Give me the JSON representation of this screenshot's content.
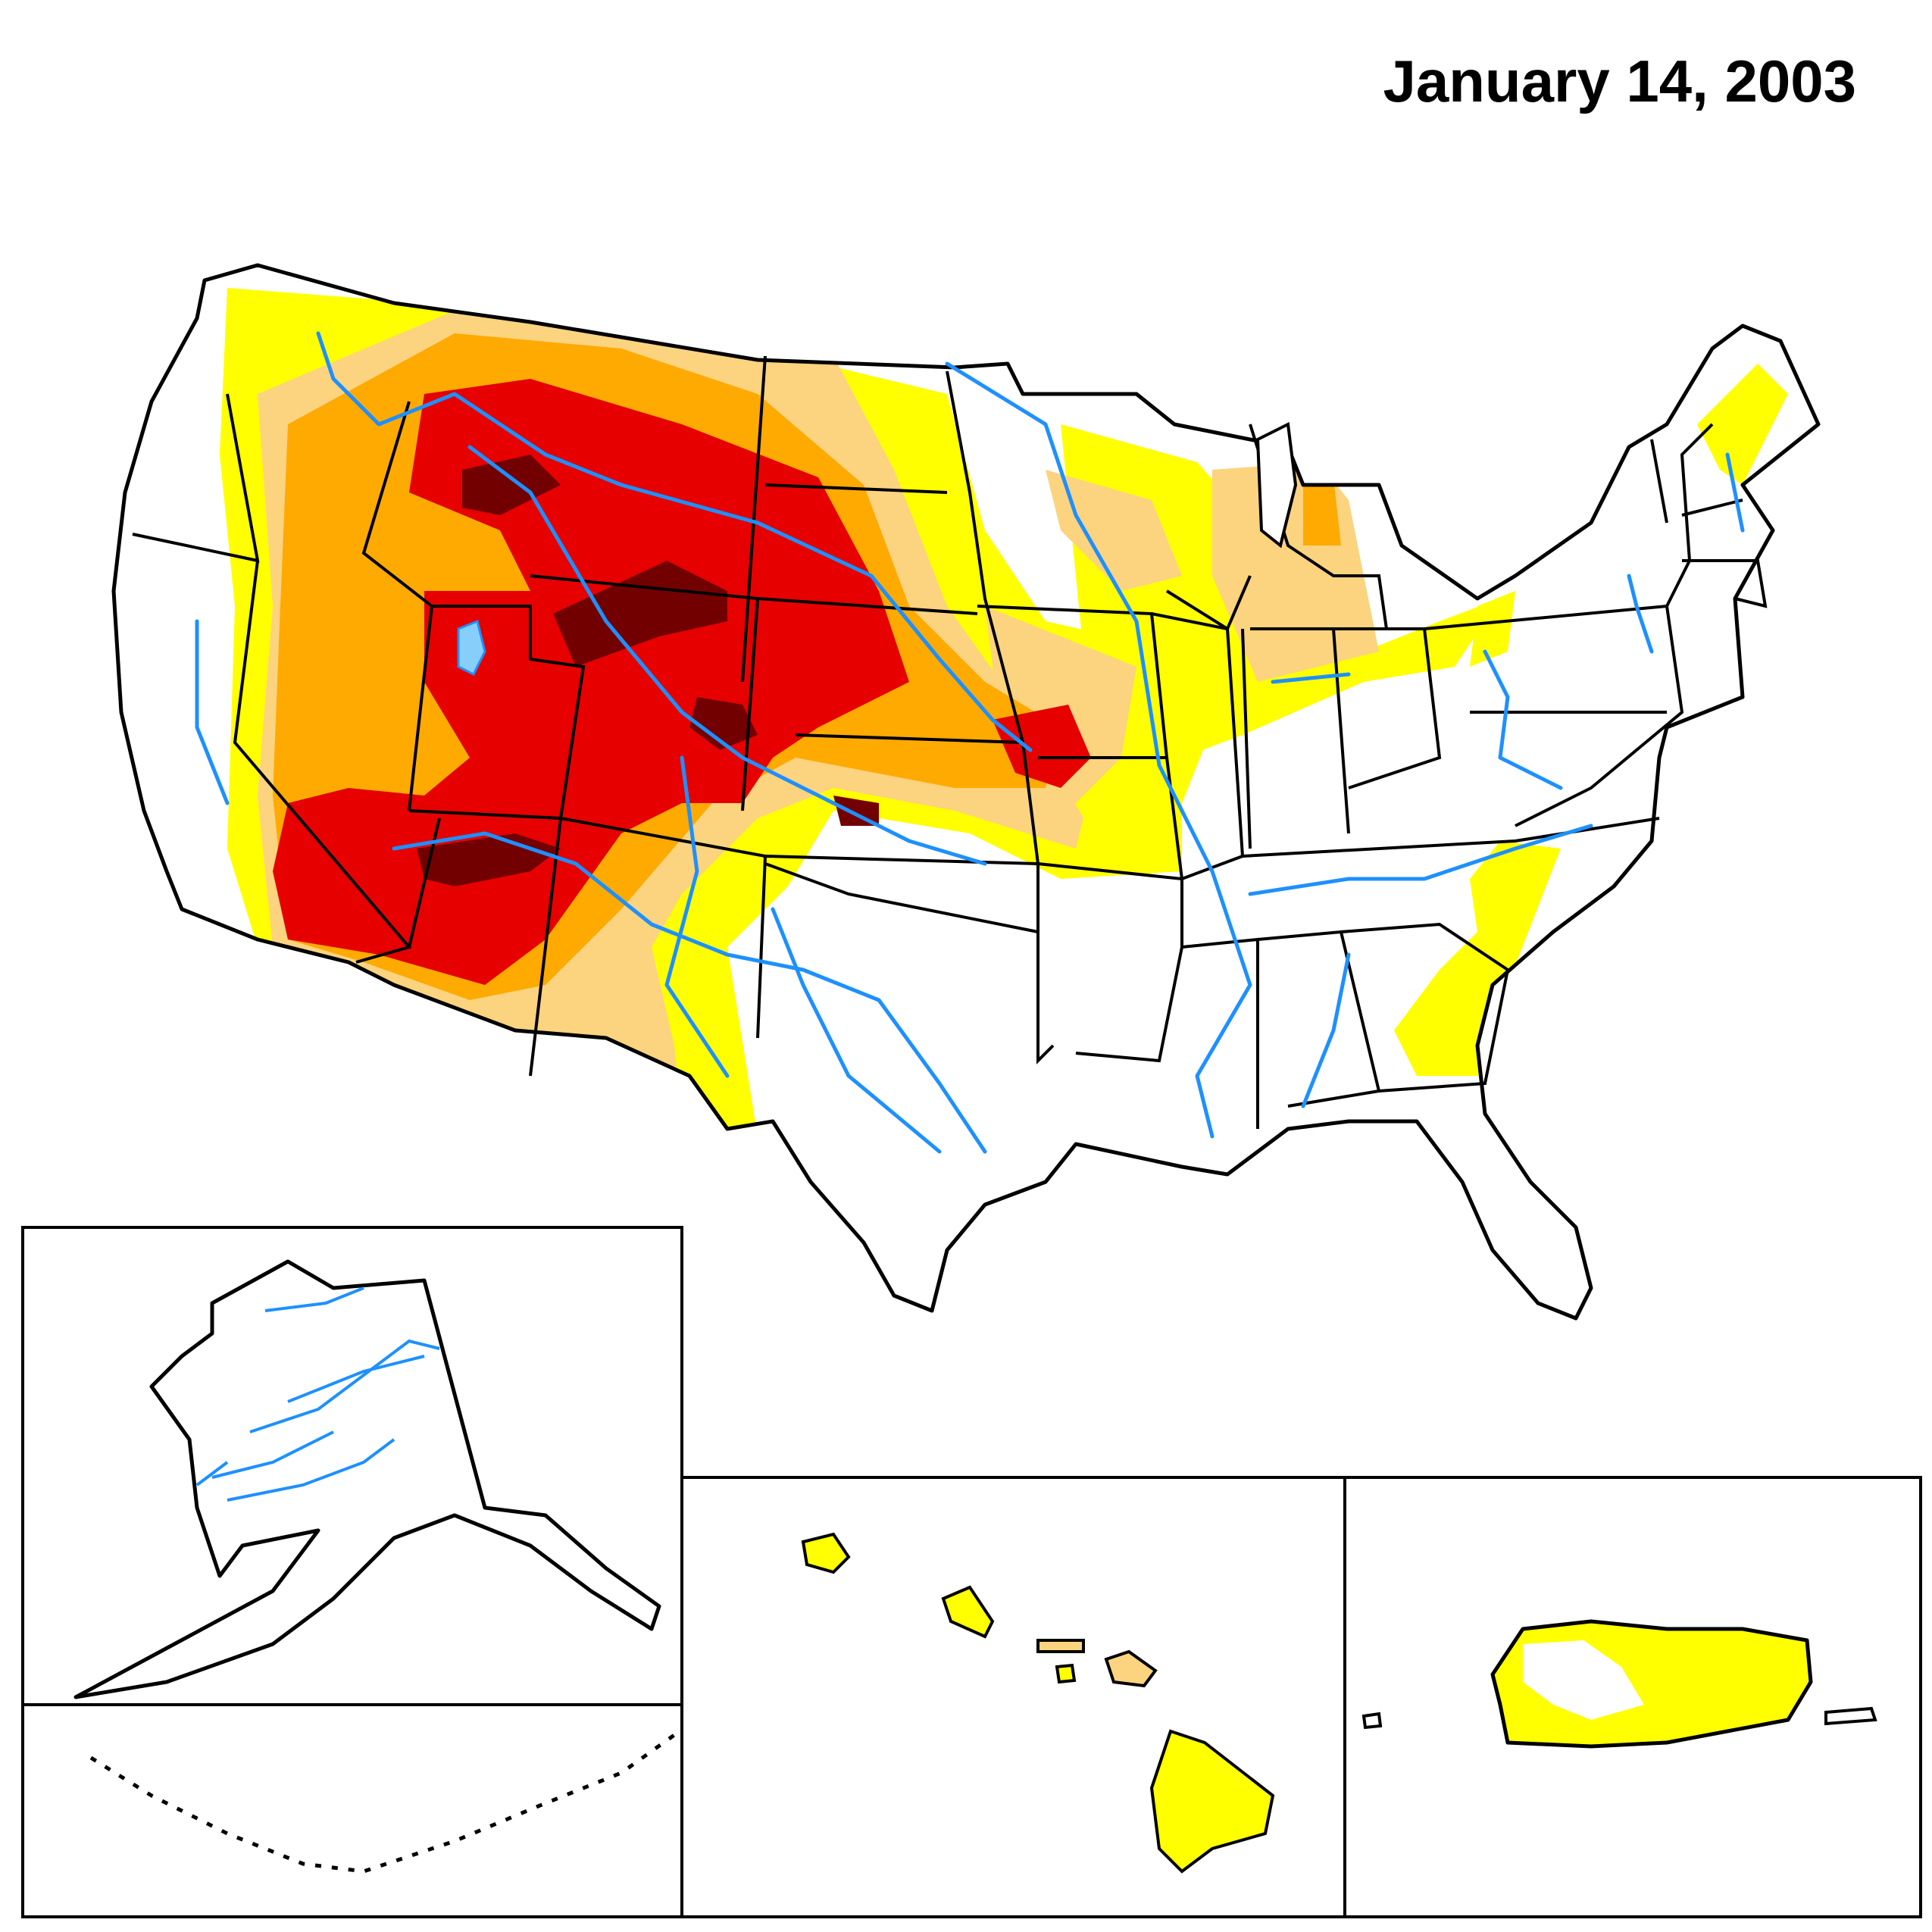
{
  "map": {
    "title": "January 14, 2003",
    "regions": [
      "Contiguous United States",
      "Alaska",
      "Hawaii",
      "Puerto Rico"
    ],
    "colors": {
      "background": "#ffffff",
      "outline": "#000000",
      "rivers": "#1e90ff",
      "lakes": "#87cefa",
      "D0_abnormally_dry": "#ffff00",
      "D1_moderate": "#fcd37f",
      "D2_severe": "#ffaa00",
      "D3_extreme": "#e60000",
      "D4_exceptional": "#730000"
    }
  }
}
